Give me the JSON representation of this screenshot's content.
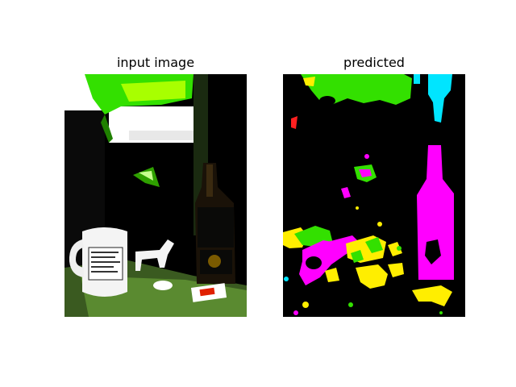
{
  "figure": {
    "titles": {
      "input": "input image",
      "predicted": "predicted"
    },
    "colors": {
      "background": "#ffffff",
      "panel_bg": "#000000",
      "green": "#33e000",
      "magenta": "#ff00ff",
      "yellow": "#ffee00",
      "cyan": "#00e5ff",
      "red": "#ff2020",
      "lime": "#a8ff00"
    },
    "input_image": {
      "mug_label_lines": [
        "",
        "",
        "",
        "",
        "",
        ""
      ]
    }
  }
}
